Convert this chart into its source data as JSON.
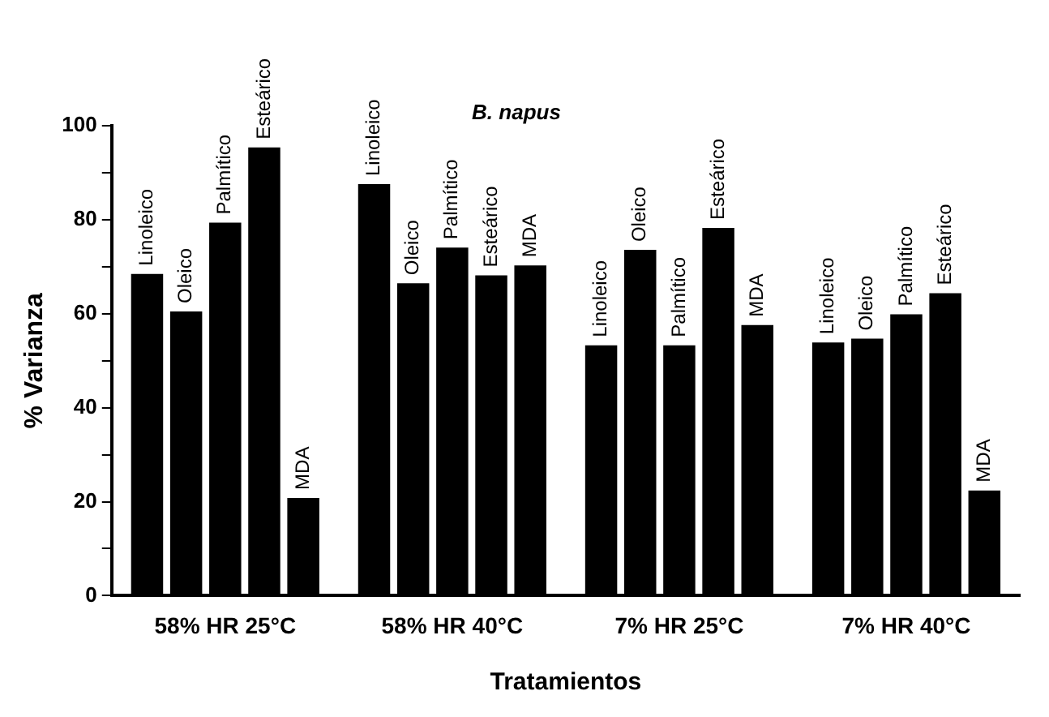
{
  "chart_data": {
    "type": "bar",
    "title": "B. napus",
    "xlabel": "Tratamientos",
    "ylabel": "% Varianza",
    "categories": [
      "58% HR 25°C",
      "58% HR 40°C",
      "7% HR 25°C",
      "7% HR 40°C"
    ],
    "series": [
      {
        "name": "Linoleico",
        "color": "#000000",
        "values": [
          68.5,
          87.6,
          53.3,
          53.9
        ]
      },
      {
        "name": "Oleico",
        "color": "#000000",
        "values": [
          60.5,
          66.5,
          73.6,
          54.7
        ]
      },
      {
        "name": "Palmítico",
        "color": "#000000",
        "values": [
          79.4,
          74.1,
          53.3,
          59.9
        ]
      },
      {
        "name": "Esteárico",
        "color": "#000000",
        "values": [
          95.4,
          68.2,
          78.3,
          64.4
        ]
      },
      {
        "name": "MDA",
        "color": "#000000",
        "values": [
          20.8,
          70.3,
          57.6,
          22.4
        ]
      }
    ],
    "ylim": [
      0,
      100
    ],
    "yticks": [
      0,
      {
        "value": 10,
        "label": null
      },
      20,
      {
        "value": 30,
        "label": null
      },
      40,
      {
        "value": 50,
        "label": null
      },
      60,
      {
        "value": 70,
        "label": null
      },
      80,
      {
        "value": 90,
        "label": null
      },
      100
    ],
    "grid": false,
    "legend": false
  }
}
